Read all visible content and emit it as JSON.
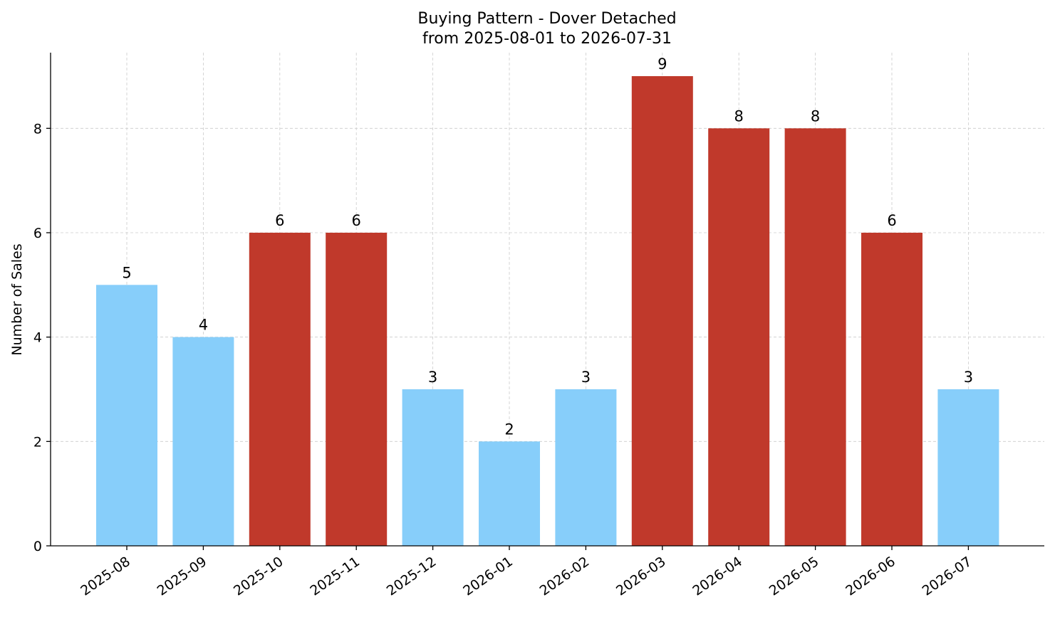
{
  "chart_data": {
    "type": "bar",
    "title": "Buying Pattern - Dover Detached",
    "subtitle": "from 2025-08-01 to 2026-07-31",
    "xlabel": "",
    "ylabel": "Number of Sales",
    "ylim": [
      0,
      9.45
    ],
    "yticks": [
      0,
      2,
      4,
      6,
      8
    ],
    "grid": true,
    "categories": [
      "2025-08",
      "2025-09",
      "2025-10",
      "2025-11",
      "2025-12",
      "2026-01",
      "2026-02",
      "2026-03",
      "2026-04",
      "2026-05",
      "2026-06",
      "2026-07"
    ],
    "values": [
      5,
      4,
      6,
      6,
      3,
      2,
      3,
      9,
      8,
      8,
      6,
      3
    ],
    "colors": {
      "low": "#87cefa",
      "high": "#c0392b"
    },
    "bar_colors": [
      "low",
      "low",
      "high",
      "high",
      "low",
      "low",
      "low",
      "high",
      "high",
      "high",
      "high",
      "low"
    ]
  }
}
